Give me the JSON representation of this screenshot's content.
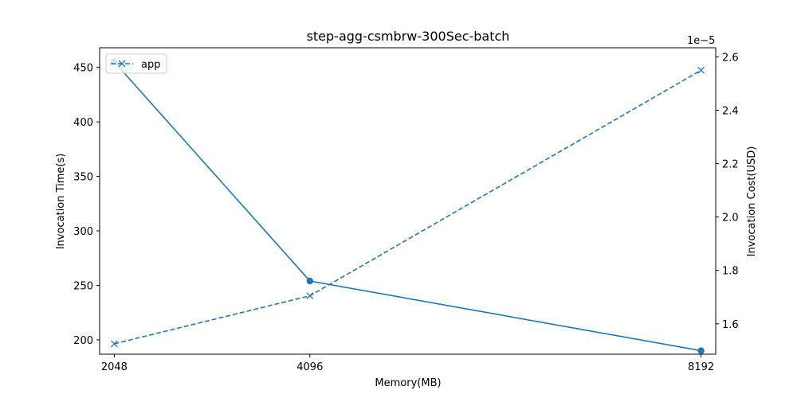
{
  "chart_data": {
    "type": "line",
    "title": "step-agg-csmbrw-300Sec-batch",
    "xlabel": "Memory(MB)",
    "ylabel_left": "Invocation Time(s)",
    "ylabel_right": "Invocation Cost(USD)",
    "right_axis_offset_label": "1e−5",
    "x": [
      2048,
      4096,
      8192
    ],
    "x_tick_labels": [
      "2048",
      "4096",
      "8192"
    ],
    "x_range": [
      1894.4,
      8345.6
    ],
    "left_axis": {
      "range": [
        186.8,
        468.0
      ],
      "ticks": [
        200,
        250,
        300,
        350,
        400,
        450
      ],
      "tick_labels": [
        "200",
        "250",
        "300",
        "350",
        "400",
        "450"
      ]
    },
    "right_axis": {
      "range": [
        1.486,
        2.634
      ],
      "ticks": [
        1.6,
        1.8,
        2.0,
        2.2,
        2.4,
        2.6
      ],
      "tick_labels": [
        "1.6",
        "1.8",
        "2.0",
        "2.2",
        "2.4",
        "2.6"
      ]
    },
    "series": [
      {
        "label": "app",
        "axis": "left",
        "values": [
          455,
          254,
          190
        ],
        "line_style": "solid",
        "marker": "circle",
        "color": "#1f77b4"
      },
      {
        "label": "app",
        "axis": "right",
        "values": [
          1.525,
          1.705,
          2.55
        ],
        "line_style": "dashed",
        "marker": "x",
        "color": "#1f77b4"
      }
    ],
    "legend": {
      "position": "top-left",
      "entries": [
        "app"
      ]
    },
    "grid": false
  }
}
